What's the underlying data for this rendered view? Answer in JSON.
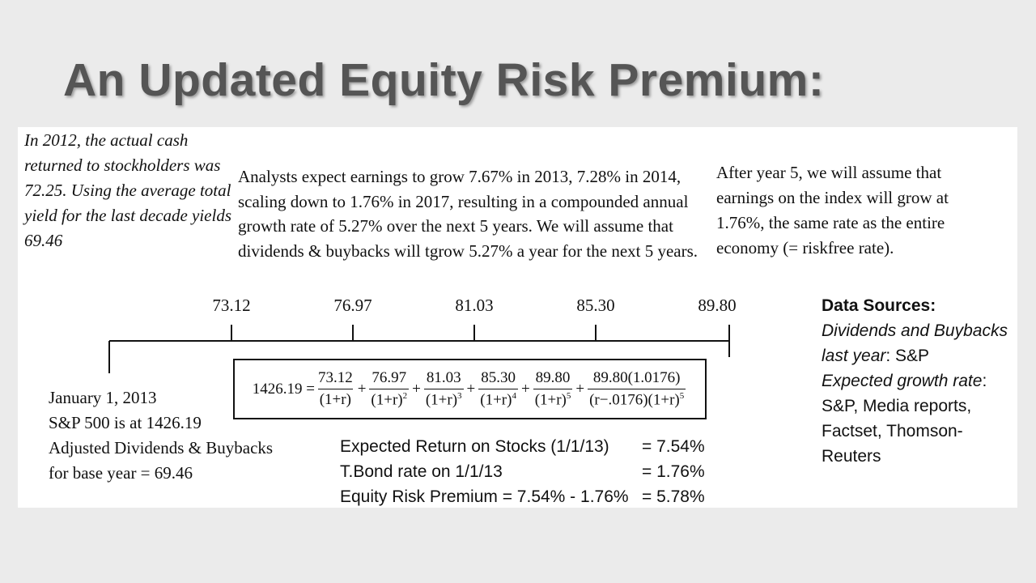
{
  "title": "An Updated Equity Risk Premium:",
  "notes": {
    "cash": [
      "In 2012, the actual cash",
      "returned to stockholders was",
      "72.25. Using the average total",
      "yield for the last decade yields",
      "69.46"
    ],
    "growth": [
      "Analysts expect earnings to grow 7.67% in 2013, 7.28% in 2014,",
      "scaling down to 1.76% in 2017, resulting in a compounded annual",
      "growth rate of 5.27% over the next 5 years. We will assume that",
      "dividends & buybacks will tgrow 5.27% a year for the next 5 years."
    ],
    "terminal": [
      "After year 5, we will assume that",
      "earnings on the index will grow at",
      "1.76%, the same rate as the entire",
      "economy (= riskfree rate)."
    ]
  },
  "timeline": {
    "cash_flows": [
      "73.12",
      "76.97",
      "81.03",
      "85.30",
      "89.80"
    ],
    "base": [
      "January 1, 2013",
      "S&P 500 is at 1426.19",
      "Adjusted Dividends & Buybacks",
      "for base year = 69.46"
    ]
  },
  "formula": {
    "lhs": "1426.19 =",
    "plus": "+",
    "terms": [
      {
        "numerator": "73.12",
        "denominator": "(1+r)"
      },
      {
        "numerator": "76.97",
        "denominator": "(1+r)",
        "exponent": "2"
      },
      {
        "numerator": "81.03",
        "denominator": "(1+r)",
        "exponent": "3"
      },
      {
        "numerator": "85.30",
        "denominator": "(1+r)",
        "exponent": "4"
      },
      {
        "numerator": "89.80",
        "denominator": "(1+r)",
        "exponent": "5"
      },
      {
        "numerator": "89.80(1.0176)",
        "denominator": "(r−.0176)(1+r)",
        "exponent": "5"
      }
    ]
  },
  "results": [
    [
      "Expected Return on Stocks (1/1/13)",
      "= 7.54%"
    ],
    [
      "T.Bond rate on 1/1/13",
      "= 1.76%"
    ],
    [
      "Equity Risk Premium = 7.54% - 1.76%",
      "= 5.78%"
    ]
  ],
  "sources": {
    "heading": "Data Sources:",
    "items": [
      {
        "label": "Dividends and Buybacks last year",
        "text": ": S&P"
      },
      {
        "label": "Expected growth rate",
        "text": ": S&P, Media reports, Factset, Thomson-Reuters"
      }
    ]
  }
}
